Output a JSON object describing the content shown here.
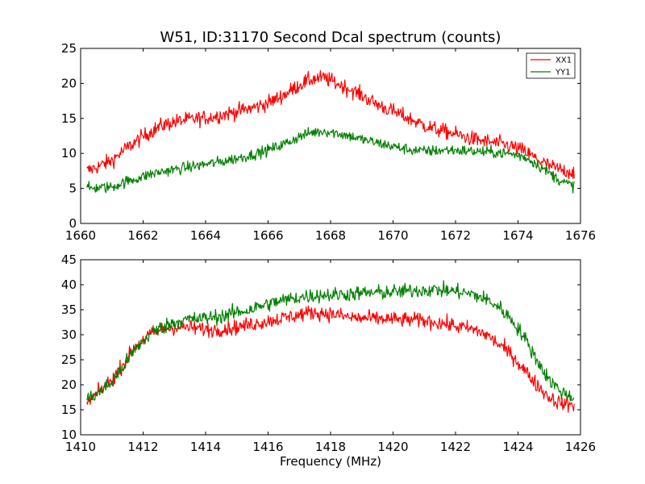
{
  "chart_data": [
    {
      "type": "line",
      "title": "W51, ID:31170 Second Dcal spectrum (counts)",
      "xlabel": "",
      "ylabel": "",
      "xlim": [
        1660,
        1676
      ],
      "ylim": [
        0,
        25
      ],
      "xticks": [
        "1660",
        "1662",
        "1664",
        "1666",
        "1668",
        "1670",
        "1672",
        "1674",
        "1676"
      ],
      "yticks": [
        "0",
        "5",
        "10",
        "15",
        "20",
        "25"
      ],
      "legend": "top-right",
      "grid": false,
      "noise": {
        "XX1": 1.1,
        "YY1": 0.8
      },
      "series": [
        {
          "name": "XX1",
          "color": "#ff0000",
          "x": [
            1660.2,
            1660.6,
            1661.0,
            1661.4,
            1661.8,
            1662.2,
            1662.6,
            1663.0,
            1663.4,
            1663.8,
            1664.2,
            1664.6,
            1665.0,
            1665.4,
            1665.8,
            1666.2,
            1666.6,
            1667.0,
            1667.4,
            1667.8,
            1668.2,
            1668.6,
            1669.0,
            1669.4,
            1669.8,
            1670.2,
            1670.6,
            1671.0,
            1671.4,
            1671.8,
            1672.2,
            1672.6,
            1673.0,
            1673.4,
            1673.8,
            1674.2,
            1674.6,
            1675.0,
            1675.4,
            1675.8
          ],
          "values": [
            7.5,
            8.2,
            9.0,
            10.5,
            11.8,
            13.0,
            14.0,
            14.5,
            14.8,
            15.0,
            15.2,
            15.6,
            16.0,
            16.4,
            16.9,
            17.6,
            18.6,
            19.8,
            20.6,
            20.8,
            20.0,
            19.2,
            18.3,
            17.2,
            16.4,
            15.6,
            14.8,
            14.0,
            13.4,
            13.0,
            12.5,
            12.0,
            11.7,
            11.4,
            11.0,
            10.3,
            9.2,
            8.2,
            7.6,
            7.3
          ]
        },
        {
          "name": "YY1",
          "color": "#008000",
          "x": [
            1660.2,
            1660.6,
            1661.0,
            1661.4,
            1661.8,
            1662.2,
            1662.6,
            1663.0,
            1663.4,
            1663.8,
            1664.2,
            1664.6,
            1665.0,
            1665.4,
            1665.8,
            1666.2,
            1666.6,
            1667.0,
            1667.4,
            1667.8,
            1668.2,
            1668.6,
            1669.0,
            1669.4,
            1669.8,
            1670.2,
            1670.6,
            1671.0,
            1671.4,
            1671.8,
            1672.2,
            1672.6,
            1673.0,
            1673.4,
            1673.8,
            1674.2,
            1674.6,
            1675.0,
            1675.4,
            1675.8
          ],
          "values": [
            5.0,
            5.1,
            5.2,
            5.9,
            6.4,
            7.0,
            7.4,
            7.7,
            8.0,
            8.3,
            8.6,
            8.9,
            9.3,
            9.7,
            10.2,
            10.8,
            11.5,
            12.4,
            13.0,
            13.2,
            12.9,
            12.5,
            12.0,
            11.6,
            11.2,
            10.8,
            10.5,
            10.3,
            10.4,
            10.5,
            10.4,
            10.3,
            10.2,
            10.1,
            9.9,
            9.5,
            8.5,
            7.2,
            6.0,
            5.3
          ]
        }
      ]
    },
    {
      "type": "line",
      "title": "",
      "xlabel": "Frequency (MHz)",
      "ylabel": "",
      "xlim": [
        1410,
        1426
      ],
      "ylim": [
        10,
        45
      ],
      "xticks": [
        "1410",
        "1412",
        "1414",
        "1416",
        "1418",
        "1420",
        "1422",
        "1424",
        "1426"
      ],
      "yticks": [
        "10",
        "15",
        "20",
        "25",
        "30",
        "35",
        "40",
        "45"
      ],
      "legend": "none",
      "grid": false,
      "noise": {
        "XX1": 1.5,
        "YY1": 1.5
      },
      "series": [
        {
          "name": "XX1",
          "color": "#ff0000",
          "x": [
            1410.2,
            1410.6,
            1411.0,
            1411.4,
            1411.8,
            1412.2,
            1412.6,
            1413.0,
            1413.4,
            1413.8,
            1414.2,
            1414.6,
            1415.0,
            1415.4,
            1415.8,
            1416.2,
            1416.6,
            1417.0,
            1417.4,
            1417.8,
            1418.2,
            1418.6,
            1419.0,
            1419.4,
            1419.8,
            1420.2,
            1420.6,
            1421.0,
            1421.4,
            1421.8,
            1422.2,
            1422.6,
            1423.0,
            1423.4,
            1423.8,
            1424.2,
            1424.6,
            1425.0,
            1425.4,
            1425.8
          ],
          "values": [
            16.5,
            18.5,
            21.0,
            24.5,
            28.0,
            30.0,
            31.0,
            31.5,
            31.5,
            31.2,
            31.0,
            31.2,
            31.5,
            32.0,
            32.5,
            33.0,
            33.5,
            34.0,
            34.5,
            34.3,
            34.0,
            33.5,
            33.3,
            33.2,
            33.2,
            33.0,
            33.0,
            32.8,
            32.5,
            32.0,
            31.5,
            31.0,
            30.0,
            28.0,
            26.0,
            23.0,
            20.0,
            17.5,
            16.2,
            16.0
          ]
        },
        {
          "name": "YY1",
          "color": "#008000",
          "x": [
            1410.2,
            1410.6,
            1411.0,
            1411.4,
            1411.8,
            1412.2,
            1412.6,
            1413.0,
            1413.4,
            1413.8,
            1414.2,
            1414.6,
            1415.0,
            1415.4,
            1415.8,
            1416.2,
            1416.6,
            1417.0,
            1417.4,
            1417.8,
            1418.2,
            1418.6,
            1419.0,
            1419.4,
            1419.8,
            1420.2,
            1420.6,
            1421.0,
            1421.4,
            1421.8,
            1422.2,
            1422.6,
            1423.0,
            1423.4,
            1423.8,
            1424.2,
            1424.6,
            1425.0,
            1425.4,
            1425.8
          ],
          "values": [
            17.0,
            18.5,
            20.5,
            24.0,
            27.5,
            30.0,
            31.5,
            32.5,
            33.0,
            33.2,
            33.5,
            33.8,
            34.5,
            35.0,
            35.8,
            36.5,
            37.0,
            37.5,
            37.8,
            38.0,
            38.0,
            38.2,
            38.3,
            38.4,
            38.5,
            38.6,
            38.8,
            39.0,
            39.0,
            38.8,
            38.5,
            38.0,
            37.0,
            35.5,
            33.0,
            29.5,
            25.0,
            21.0,
            18.5,
            17.5
          ]
        }
      ]
    }
  ]
}
